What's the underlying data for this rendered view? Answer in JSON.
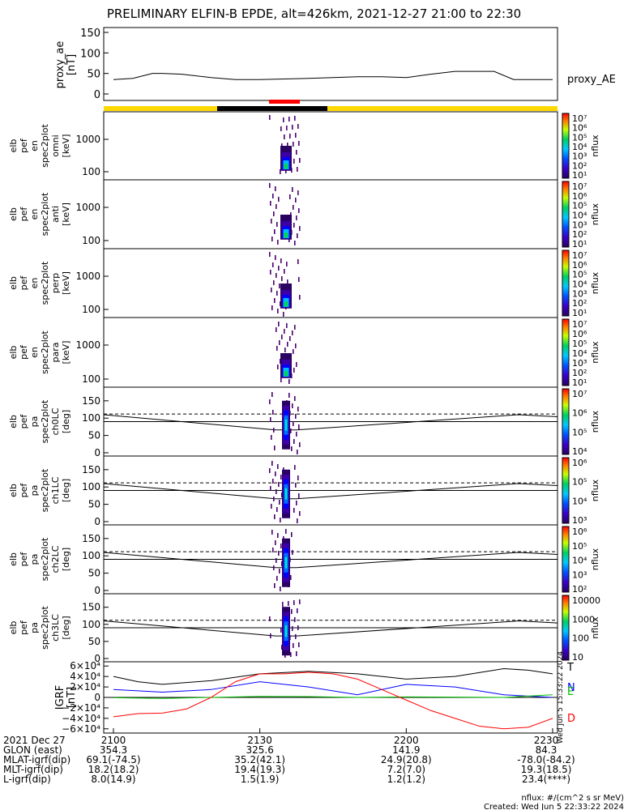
{
  "title": "PRELIMINARY ELFIN-B EPDE, alt=426km, 2021-12-27 21:00 to 22:30",
  "colors": {
    "background": "#ffffff",
    "axis": "#000000",
    "yellow_bar": "#ffd800",
    "black_bar": "#000000",
    "red_bar": "#ff0000"
  },
  "chart_data": [
    {
      "type": "line",
      "id": "proxy_ae",
      "ylabel": [
        "proxy_ae",
        "[nT]"
      ],
      "ylim": [
        0,
        150
      ],
      "yticks": [
        "150",
        "100",
        "50",
        "0"
      ],
      "series": [
        {
          "name": "proxy_AE",
          "x": [
            0,
            4,
            8,
            10,
            14,
            20,
            25,
            30,
            40,
            50,
            55,
            60,
            65,
            70,
            78,
            82,
            86,
            90
          ],
          "values": [
            35,
            38,
            50,
            50,
            48,
            40,
            35,
            35,
            38,
            42,
            42,
            40,
            48,
            55,
            55,
            35,
            35,
            35
          ]
        }
      ]
    },
    {
      "type": "heatmap",
      "id": "pef-en-omni",
      "ylabel": [
        "elb",
        "pef",
        "en",
        "spec2plot",
        "omni",
        "[keV]"
      ],
      "yscale": "log",
      "yticks": [
        "1000",
        "100"
      ],
      "colorbar": {
        "label": "nflux",
        "ticks": [
          "10⁷",
          "10⁶",
          "10⁵",
          "10⁴",
          "10³",
          "10²",
          "10¹"
        ]
      }
    },
    {
      "type": "heatmap",
      "id": "pef-en-anti",
      "ylabel": [
        "elb",
        "pef",
        "en",
        "spec2plot",
        "anti",
        "[keV]"
      ],
      "yscale": "log",
      "yticks": [
        "1000",
        "100"
      ],
      "colorbar": {
        "label": "nflux",
        "ticks": [
          "10⁷",
          "10⁶",
          "10⁵",
          "10⁴",
          "10³",
          "10²",
          "10¹"
        ]
      }
    },
    {
      "type": "heatmap",
      "id": "pef-en-perp",
      "ylabel": [
        "elb",
        "pef",
        "en",
        "spec2plot",
        "perp",
        "[keV]"
      ],
      "yscale": "log",
      "yticks": [
        "1000",
        "100"
      ],
      "colorbar": {
        "label": "nflux",
        "ticks": [
          "10⁷",
          "10⁶",
          "10⁵",
          "10⁴",
          "10³",
          "10²",
          "10¹"
        ]
      }
    },
    {
      "type": "heatmap",
      "id": "pef-en-para",
      "ylabel": [
        "elb",
        "pef",
        "en",
        "spec2plot",
        "para",
        "[keV]"
      ],
      "yscale": "log",
      "yticks": [
        "1000",
        "100"
      ],
      "colorbar": {
        "label": "nflux",
        "ticks": [
          "10⁷",
          "10⁶",
          "10⁵",
          "10⁴",
          "10³",
          "10²",
          "10¹"
        ]
      }
    },
    {
      "type": "heatmap",
      "id": "pa-ch0",
      "ylabel": [
        "elb",
        "pef",
        "pa",
        "spec2plot",
        "ch0LC",
        "[deg]"
      ],
      "ylim": [
        0,
        180
      ],
      "yticks": [
        "150",
        "100",
        "50",
        "0"
      ],
      "colorbar": {
        "label": "nflux",
        "ticks": [
          "10⁷",
          "10⁶",
          "10⁵",
          "10⁴"
        ]
      }
    },
    {
      "type": "heatmap",
      "id": "pa-ch1",
      "ylabel": [
        "elb",
        "pef",
        "pa",
        "spec2plot",
        "ch1LC",
        "[deg]"
      ],
      "ylim": [
        0,
        180
      ],
      "yticks": [
        "150",
        "100",
        "50",
        "0"
      ],
      "colorbar": {
        "label": "nflux",
        "ticks": [
          "10⁶",
          "10⁵",
          "10⁴",
          "10³"
        ]
      }
    },
    {
      "type": "heatmap",
      "id": "pa-ch2",
      "ylabel": [
        "elb",
        "pef",
        "pa",
        "spec2plot",
        "ch2LC",
        "[deg]"
      ],
      "ylim": [
        0,
        180
      ],
      "yticks": [
        "150",
        "100",
        "50",
        "0"
      ],
      "colorbar": {
        "label": "nflux",
        "ticks": [
          "10⁶",
          "10⁵",
          "10⁴",
          "10³",
          "10²"
        ]
      }
    },
    {
      "type": "heatmap",
      "id": "pa-ch3",
      "ylabel": [
        "elb",
        "pef",
        "pa",
        "spec2plot",
        "ch3LC",
        "[deg]"
      ],
      "ylim": [
        0,
        180
      ],
      "yticks": [
        "150",
        "100",
        "50",
        "0"
      ],
      "colorbar": {
        "label": "nflux",
        "ticks": [
          "10000",
          "1000",
          "100",
          "10"
        ]
      }
    },
    {
      "type": "line",
      "id": "igrf",
      "ylabel": [
        "IGRF",
        "[nT]"
      ],
      "ylim": [
        -65000,
        65000
      ],
      "yticks": [
        "6×10⁴",
        "4×10⁴",
        "2×10⁴",
        "0",
        "−2×10⁴",
        "−4×10⁴",
        "−6×10⁴"
      ],
      "side_note": "Wed Jun  5 15:33:22 2024",
      "series": [
        {
          "name": "T",
          "color": "#000000",
          "x": [
            0,
            5,
            10,
            20,
            30,
            40,
            50,
            60,
            70,
            80,
            85,
            90
          ],
          "values": [
            40000,
            30000,
            25000,
            32000,
            45000,
            50000,
            45000,
            35000,
            40000,
            55000,
            52000,
            45000
          ]
        },
        {
          "name": "N",
          "color": "#0000ff",
          "x": [
            0,
            10,
            20,
            30,
            40,
            50,
            60,
            70,
            80,
            90
          ],
          "values": [
            15000,
            10000,
            15000,
            30000,
            20000,
            5000,
            25000,
            20000,
            5000,
            0
          ]
        },
        {
          "name": "E",
          "color": "#00c000",
          "x": [
            0,
            10,
            20,
            30,
            40,
            50,
            60,
            70,
            80,
            90
          ],
          "values": [
            -500,
            -2000,
            0,
            2000,
            1500,
            0,
            1000,
            500,
            0,
            5000
          ]
        },
        {
          "name": "D",
          "color": "#ff0000",
          "x": [
            0,
            5,
            10,
            15,
            20,
            25,
            30,
            35,
            40,
            45,
            50,
            55,
            60,
            65,
            70,
            75,
            80,
            85,
            90
          ],
          "values": [
            -37000,
            -31000,
            -30000,
            -22000,
            0,
            30000,
            45000,
            45000,
            48000,
            45000,
            35000,
            15000,
            -5000,
            -25000,
            -40000,
            -55000,
            -60000,
            -57000,
            -40000
          ]
        }
      ]
    }
  ],
  "footer": {
    "rows": [
      {
        "label": "2021 Dec 27",
        "values": [
          "2100",
          "2130",
          "2200",
          "2230"
        ]
      },
      {
        "label": "GLON (east)",
        "values": [
          "354.3",
          "325.6",
          "141.9",
          "84.3"
        ]
      },
      {
        "label": "MLAT-igrf(dip)",
        "values": [
          "69.1(-74.5)",
          "35.2(42.1)",
          "24.9(20.8)",
          "-78.0(-84.2)"
        ]
      },
      {
        "label": "MLT-igrf(dip)",
        "values": [
          "18.2(18.2)",
          "19.4(19.3)",
          "7.2(7.0)",
          "19.3(18.5)"
        ]
      },
      {
        "label": "L-igrf(dip)",
        "values": [
          "8.0(14.9)",
          "1.5(1.9)",
          "1.2(1.2)",
          "23.4(****)"
        ]
      }
    ],
    "note_units": "nflux: #/(cm^2 s sr MeV)",
    "note_created": "Created: Wed Jun  5 22:33:22 2024"
  }
}
